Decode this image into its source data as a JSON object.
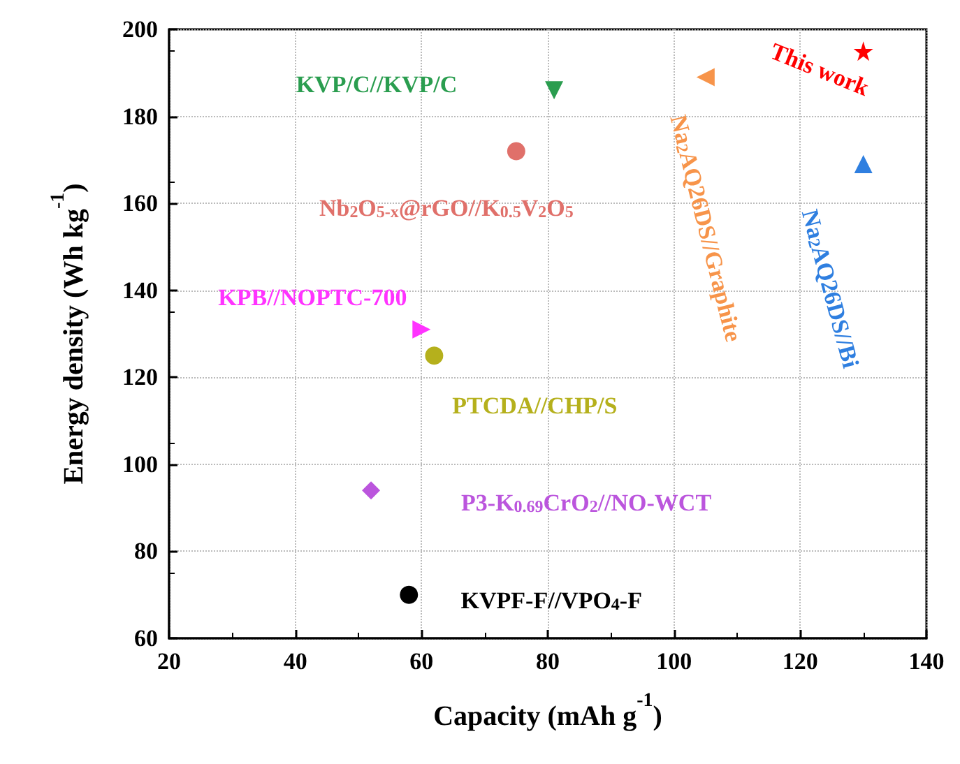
{
  "chart_data": {
    "type": "scatter",
    "xlabel": "Capacity (mAh g$^{-1}$)",
    "ylabel": "Energy density (Wh kg$^{-1}$)",
    "xlim": [
      20,
      140
    ],
    "xticks": [
      20,
      40,
      60,
      80,
      100,
      120,
      140
    ],
    "ylim": [
      60,
      200
    ],
    "yticks": [
      60,
      80,
      100,
      120,
      140,
      160,
      180,
      200
    ],
    "grid": true,
    "series": [
      {
        "name": "This work",
        "color": "#ff0000",
        "marker": "star",
        "x": [
          130
        ],
        "values": [
          195
        ]
      },
      {
        "name": "KVP/C//KVP/C",
        "color": "#2a9d4f",
        "marker": "triangle",
        "x": [
          81
        ],
        "values": [
          186
        ]
      },
      {
        "name": "Nb$_{2}$O$_{5-x}$@rGO//K$_{0.5}$V$_{2}$O$_{5}$",
        "color": "#e0706a",
        "marker": "circle",
        "x": [
          75
        ],
        "values": [
          172
        ]
      },
      {
        "name": "Na$_{2}$AQ26DS//Graphite",
        "color": "#f7944a",
        "marker": "triangle",
        "x": [
          105
        ],
        "values": [
          189
        ]
      },
      {
        "name": "Na$_{2}$AQ26DS//Bi",
        "color": "#2f7fe0",
        "marker": "triangle",
        "x": [
          130
        ],
        "values": [
          169
        ]
      },
      {
        "name": "KPB//NOPTC-700",
        "color": "#ff33ff",
        "marker": "triangle",
        "x": [
          60
        ],
        "values": [
          131
        ]
      },
      {
        "name": "PTCDA//CHP/S",
        "color": "#b5b01c",
        "marker": "circle",
        "x": [
          62
        ],
        "values": [
          125
        ]
      },
      {
        "name": "P3-K$_{0.69}$CrO$_{2}$//NO-WCT",
        "color": "#bb55dd",
        "marker": "diamond",
        "x": [
          52
        ],
        "values": [
          94
        ]
      },
      {
        "name": "KVPF-F//VPO$_{4}$-F",
        "color": "#000000",
        "marker": "circle",
        "x": [
          58
        ],
        "values": [
          70
        ]
      }
    ]
  }
}
